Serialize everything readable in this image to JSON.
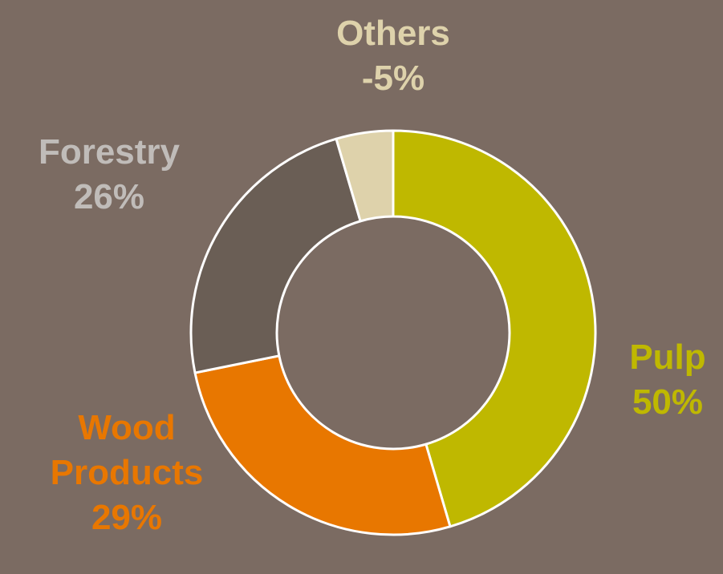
{
  "chart_data": {
    "type": "pie",
    "variant": "donut",
    "slices": [
      {
        "label": "Pulp",
        "value": 50,
        "display": "50%",
        "color": "#bfb800"
      },
      {
        "label": "Wood Products",
        "label_lines": [
          "Wood",
          "Products"
        ],
        "value": 29,
        "display": "29%",
        "color": "#e87700"
      },
      {
        "label": "Forestry",
        "value": 26,
        "display": "26%",
        "color": "#6a5e55",
        "label_color": "#c0bcb9"
      },
      {
        "label": "Others",
        "value": -5,
        "display": "-5%",
        "color": "#ded2ab"
      }
    ],
    "label_text_colors": {
      "Pulp": "#bfb800",
      "Wood Products": "#e87700",
      "Forestry": "#c0bcb9",
      "Others": "#ded2ab"
    },
    "start_angle": "12 o'clock",
    "direction": "clockwise",
    "border_color": "#ffffff",
    "background_color": "#7b6b62",
    "legend": "none",
    "title": ""
  }
}
